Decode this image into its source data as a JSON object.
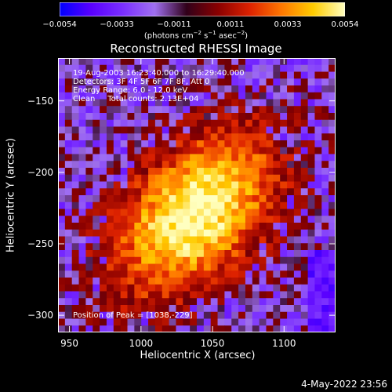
{
  "colorbar": {
    "ticks": [
      "−0.0054",
      "−0.0033",
      "−0.0011",
      "0.0011",
      "0.0033",
      "0.0054"
    ],
    "unit_text": "(photons cm",
    "unit_exp1": "−2",
    "unit_mid": " s",
    "unit_exp2": "−1",
    "unit_mid2": " asec",
    "unit_exp3": "−2",
    "unit_end": ")",
    "colors": [
      "#0000ff",
      "#5a00ff",
      "#7a2fff",
      "#a070f0",
      "#30001a",
      "#8a0000",
      "#dd2200",
      "#ff7700",
      "#ffcc00",
      "#ffffc0"
    ]
  },
  "chart_data": {
    "type": "heatmap",
    "title": "Reconstructed RHESSI Image",
    "xlabel": "Heliocentric X (arcsec)",
    "ylabel": "Heliocentric Y (arcsec)",
    "xlim": [
      942,
      1136
    ],
    "ylim": [
      -312,
      -120
    ],
    "xticks": [
      950,
      1000,
      1050,
      1100
    ],
    "yticks": [
      -150,
      -200,
      -250,
      -300
    ],
    "peak": [
      1038,
      -229
    ],
    "value_range": [
      -0.0054,
      0.0054
    ],
    "annotations": [
      "19-Aug-2003 16:23:40.000 to 16:29:40.000",
      "Detectors: 3F 4F 5F 6F 7F 8F, Att 0",
      "Energy Range: 6.0 - 12.0 keV",
      "Clean     Total counts: 2.13E+04"
    ],
    "peak_label": "Position of Peak = [1038,-229]"
  },
  "timestamp": "4-May-2022 23:56"
}
